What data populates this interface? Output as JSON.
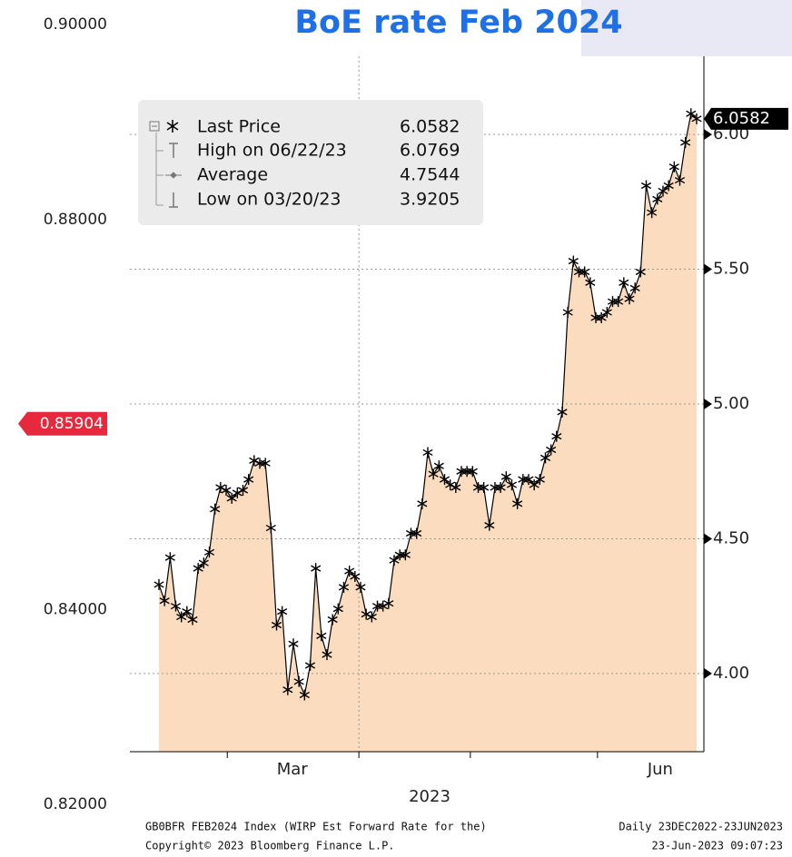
{
  "chart_data": {
    "type": "line",
    "title": "BoE rate Feb 2024",
    "series": [
      {
        "name": "Last Price",
        "color": "#000000",
        "fill": "#fbdcbf",
        "values": [
          4.33,
          4.27,
          4.43,
          4.25,
          4.21,
          4.23,
          4.2,
          4.39,
          4.41,
          4.45,
          4.61,
          4.69,
          4.68,
          4.65,
          4.67,
          4.68,
          4.72,
          4.79,
          4.78,
          4.78,
          4.54,
          4.18,
          4.23,
          3.94,
          4.11,
          3.97,
          3.9205,
          4.03,
          4.39,
          4.14,
          4.07,
          4.2,
          4.24,
          4.32,
          4.38,
          4.36,
          4.32,
          4.22,
          4.21,
          4.25,
          4.25,
          4.26,
          4.42,
          4.44,
          4.44,
          4.52,
          4.52,
          4.63,
          4.82,
          4.74,
          4.77,
          4.72,
          4.7,
          4.69,
          4.75,
          4.75,
          4.75,
          4.69,
          4.69,
          4.55,
          4.69,
          4.69,
          4.73,
          4.7,
          4.63,
          4.72,
          4.72,
          4.7,
          4.72,
          4.8,
          4.83,
          4.88,
          4.97,
          5.34,
          5.53,
          5.49,
          5.49,
          5.45,
          5.32,
          5.32,
          5.34,
          5.38,
          5.38,
          5.45,
          5.39,
          5.43,
          5.49,
          5.81,
          5.71,
          5.76,
          5.79,
          5.81,
          5.88,
          5.83,
          5.97,
          6.0769,
          6.0582
        ]
      }
    ],
    "ylim": [
      3.71,
      6.29
    ],
    "yticks": [
      {
        "value": 4,
        "label": "4.00"
      },
      {
        "value": 4.5,
        "label": "4.50"
      },
      {
        "value": 5,
        "label": "5.00"
      },
      {
        "value": 5.5,
        "label": "5.50"
      },
      {
        "value": 6,
        "label": "6.00"
      }
    ],
    "grid": true,
    "xlim": [
      -5.19,
      97.3
    ],
    "xticks": [
      12.2,
      35.7,
      55.6,
      78.3
    ],
    "vgrid": [
      35.7
    ],
    "xlabels": [
      {
        "value": 23.8,
        "label": "Mar"
      },
      {
        "value": 89.5,
        "label": "Jun"
      }
    ],
    "xlabel": "2023",
    "price_tag": 6.0582,
    "y2lim": [
      0.82,
      0.9
    ],
    "y2ticks": [
      {
        "value": 0.9,
        "label": "0.90000"
      },
      {
        "value": 0.88,
        "label": "0.88000"
      },
      {
        "value": 0.84,
        "label": "0.84000"
      },
      {
        "value": 0.82,
        "label": "0.82000"
      }
    ],
    "y2_marker": 0.85904,
    "legend": [
      {
        "label": "High on 06/22/23",
        "value": 6.0769
      },
      {
        "label": "Average",
        "value": 4.7544
      },
      {
        "label": "Low on 03/20/23",
        "value": 3.9205
      }
    ],
    "last_price": 6.0582,
    "footer": {
      "source": "GB0BFR FEB2024 Index (WIRP Est Forward Rate for the)",
      "range": "Daily 23DEC2022-23JUN2023",
      "copyright": "Copyright© 2023 Bloomberg Finance L.P.",
      "timestamp": "23-Jun-2023 09:07:23"
    }
  }
}
